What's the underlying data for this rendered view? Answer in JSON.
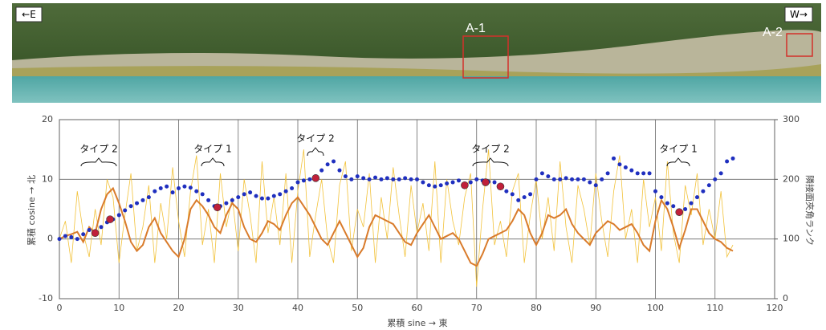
{
  "photo": {
    "left_label": "←E",
    "right_label": "W→",
    "box_labels": [
      "A-1",
      "A-2"
    ]
  },
  "chart_data": {
    "type": "line",
    "x_label": "累積 sine → 東",
    "y_label": "累積 cosine → 北",
    "y2_label": "隣接面夾角ランク",
    "annotations": [
      "タイプ 2",
      "タイプ 1",
      "タイプ 2",
      "タイプ 2",
      "タイプ 1"
    ],
    "xlim": [
      0,
      120
    ],
    "xticks": [
      0,
      10,
      20,
      30,
      40,
      50,
      60,
      70,
      80,
      90,
      100,
      110,
      120
    ],
    "ylim": [
      -10,
      20
    ],
    "yticks": [
      -10,
      0,
      10,
      20
    ],
    "y2lim": [
      0,
      300
    ],
    "y2ticks": [
      0,
      100,
      200,
      300
    ],
    "grid": true,
    "x": [
      0,
      1,
      2,
      3,
      4,
      5,
      6,
      7,
      8,
      9,
      10,
      11,
      12,
      13,
      14,
      15,
      16,
      17,
      18,
      19,
      20,
      21,
      22,
      23,
      24,
      25,
      26,
      27,
      28,
      29,
      30,
      31,
      32,
      33,
      34,
      35,
      36,
      37,
      38,
      39,
      40,
      41,
      42,
      43,
      44,
      45,
      46,
      47,
      48,
      49,
      50,
      51,
      52,
      53,
      54,
      55,
      56,
      57,
      58,
      59,
      60,
      61,
      62,
      63,
      64,
      65,
      66,
      67,
      68,
      69,
      70,
      71,
      72,
      73,
      74,
      75,
      76,
      77,
      78,
      79,
      80,
      81,
      82,
      83,
      84,
      85,
      86,
      87,
      88,
      89,
      90,
      91,
      92,
      93,
      94,
      95,
      96,
      97,
      98,
      99,
      100,
      101,
      102,
      103,
      104,
      105,
      106,
      107,
      108,
      109,
      110,
      111,
      112,
      113
    ],
    "series": [
      {
        "color": "#f2c23a",
        "axis": "y2",
        "mode": "line",
        "values": [
          100,
          130,
          60,
          180,
          110,
          70,
          150,
          90,
          200,
          170,
          60,
          140,
          210,
          80,
          120,
          190,
          60,
          160,
          100,
          220,
          130,
          70,
          180,
          240,
          90,
          150,
          60,
          210,
          120,
          170,
          80,
          200,
          140,
          60,
          230,
          110,
          170,
          90,
          210,
          60,
          180,
          250,
          70,
          140,
          200,
          100,
          60,
          190,
          230,
          80,
          150,
          120,
          210,
          60,
          170,
          100,
          220,
          140,
          70,
          190,
          110,
          160,
          80,
          230,
          60,
          200,
          130,
          90,
          170,
          210,
          20,
          150,
          250,
          90,
          130,
          70,
          180,
          210,
          60,
          140,
          200,
          100,
          170,
          80,
          230,
          120,
          60,
          190,
          150,
          90,
          210,
          130,
          70,
          180,
          240,
          100,
          150,
          60,
          200,
          120,
          170,
          80,
          230,
          110,
          60,
          190,
          140,
          210,
          90,
          150,
          100,
          180,
          70,
          90
        ]
      },
      {
        "color": "#d97b2b",
        "axis": "y2",
        "mode": "line",
        "values": [
          100,
          105,
          108,
          112,
          95,
          120,
          110,
          150,
          175,
          185,
          160,
          130,
          95,
          80,
          90,
          120,
          135,
          110,
          95,
          80,
          70,
          100,
          150,
          165,
          155,
          140,
          120,
          110,
          140,
          160,
          150,
          120,
          100,
          95,
          110,
          130,
          125,
          115,
          140,
          160,
          170,
          155,
          140,
          120,
          100,
          90,
          110,
          130,
          110,
          90,
          70,
          85,
          120,
          140,
          135,
          130,
          125,
          110,
          95,
          90,
          110,
          125,
          140,
          120,
          100,
          105,
          110,
          100,
          80,
          60,
          55,
          75,
          100,
          105,
          110,
          115,
          130,
          150,
          140,
          110,
          90,
          110,
          140,
          135,
          140,
          150,
          125,
          110,
          100,
          90,
          110,
          120,
          130,
          125,
          115,
          120,
          125,
          110,
          90,
          80,
          130,
          165,
          150,
          120,
          85,
          115,
          150,
          150,
          130,
          110,
          100,
          95,
          85,
          80
        ]
      },
      {
        "color": "#1f2fbf",
        "mode": "markers",
        "values": [
          0,
          0.5,
          0.3,
          0,
          0.8,
          1.5,
          1.2,
          2,
          2.8,
          3.3,
          4,
          4.8,
          5.5,
          6,
          6.5,
          7,
          8,
          8.5,
          8.8,
          7.8,
          8.5,
          8.8,
          8.6,
          8,
          7.5,
          6.5,
          5.5,
          5.5,
          6,
          6.5,
          7,
          7.5,
          7.8,
          7.2,
          6.8,
          6.8,
          7.2,
          7.5,
          8,
          8.5,
          9.5,
          9.8,
          10,
          10.5,
          11.5,
          12.5,
          13,
          11.5,
          10.5,
          10,
          10.5,
          10.2,
          10,
          10.3,
          10,
          10.2,
          10,
          10,
          10.2,
          10,
          10,
          9.5,
          9,
          8.8,
          9,
          9.3,
          9.5,
          9.8,
          9.2,
          9.5,
          10,
          9.8,
          9.6,
          9.5,
          8.8,
          8,
          7.5,
          6.5,
          7,
          7.5,
          10,
          11,
          10.5,
          10,
          10,
          10.2,
          10,
          10,
          10,
          9.5,
          9,
          10,
          11,
          13.5,
          12.5,
          12,
          11.5,
          11,
          11,
          11,
          8,
          7,
          6,
          5.5,
          4.5,
          5,
          6,
          7,
          8,
          9,
          10,
          11,
          13,
          13.5
        ]
      },
      {
        "color": "#c0203a",
        "mode": "markers",
        "x": [
          6,
          8.5,
          26.5,
          43,
          68,
          71.5,
          74,
          104
        ],
        "values": [
          1,
          3.3,
          5.3,
          10.2,
          9,
          9.5,
          8.8,
          4.5
        ]
      }
    ]
  }
}
